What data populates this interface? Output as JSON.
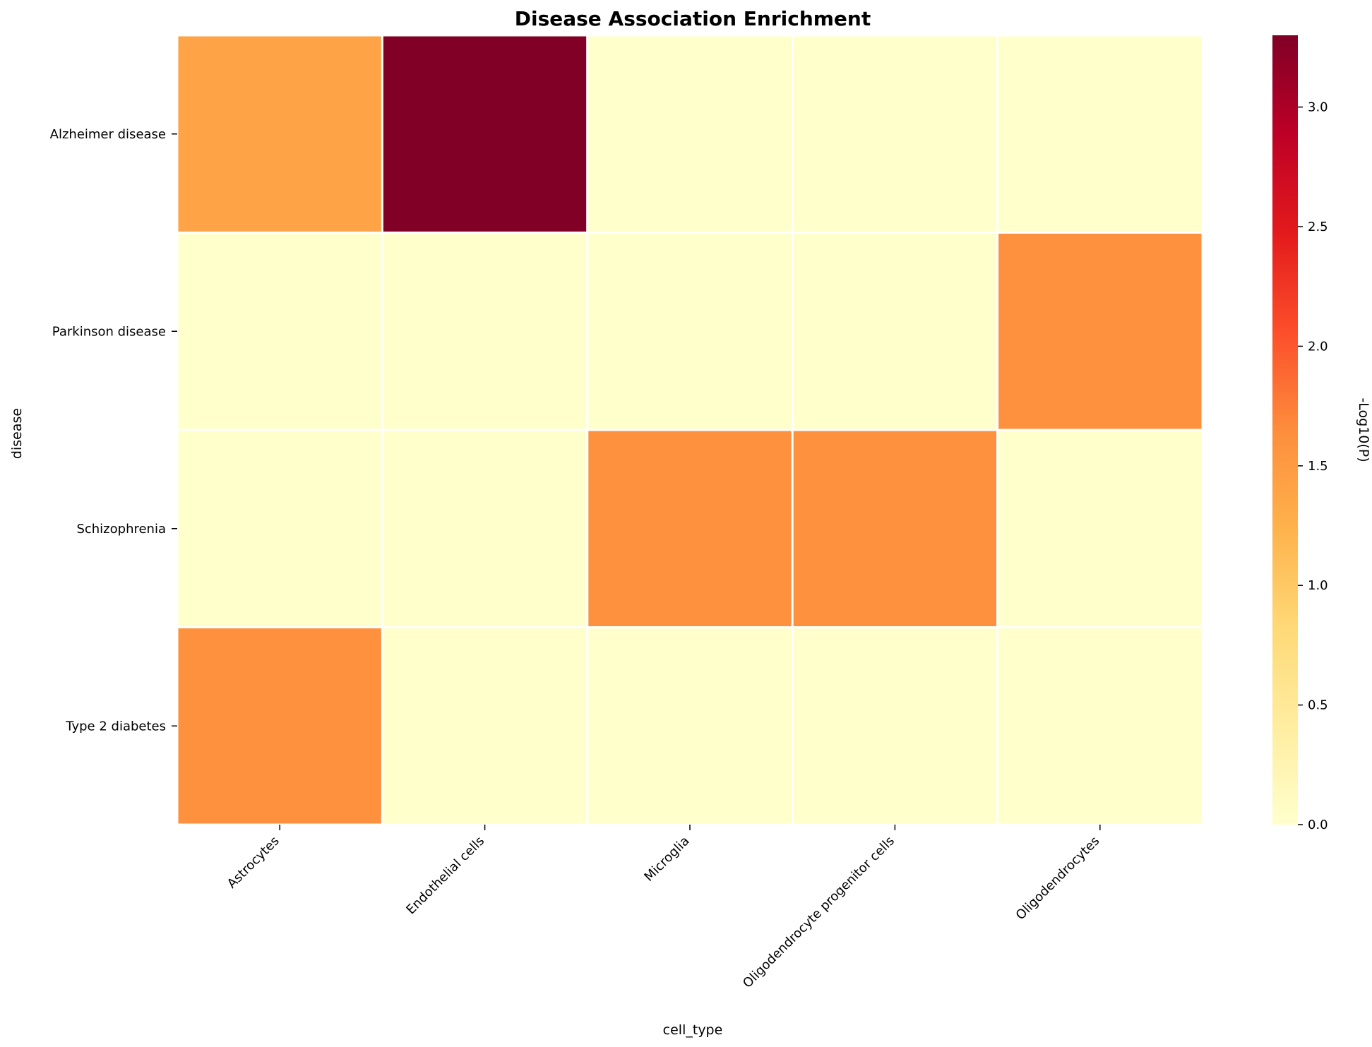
{
  "chart_data": {
    "type": "heatmap",
    "title": "Disease Association Enrichment",
    "xlabel": "cell_type",
    "ylabel": "disease",
    "colorbar_label": "-Log10(P)",
    "colormap": "YlOrRd",
    "x_categories": [
      "Astrocytes",
      "Endothelial cells",
      "Microglia",
      "Oligodendrocyte progenitor cells",
      "Oligodendrocytes"
    ],
    "y_categories": [
      "Alzheimer disease",
      "Parkinson disease",
      "Schizophrenia",
      "Type 2 diabetes"
    ],
    "values": [
      [
        1.4,
        3.3,
        0.0,
        0.0,
        0.0
      ],
      [
        0.0,
        0.0,
        0.0,
        0.0,
        1.6
      ],
      [
        0.0,
        0.0,
        1.6,
        1.6,
        0.0
      ],
      [
        1.6,
        0.0,
        0.0,
        0.0,
        0.0
      ]
    ],
    "vmin": 0.0,
    "vmax": 3.3,
    "colorbar_ticks": [
      "0.0",
      "0.5",
      "1.0",
      "1.5",
      "2.0",
      "2.5",
      "3.0"
    ],
    "colorbar_tick_values": [
      0.0,
      0.5,
      1.0,
      1.5,
      2.0,
      2.5,
      3.0
    ]
  }
}
